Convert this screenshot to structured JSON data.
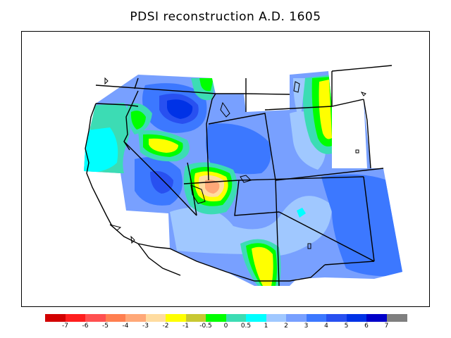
{
  "title": "PDSI reconstruction A.D. 1605",
  "colorbar": {
    "colors": [
      "#d20000",
      "#ff1e1e",
      "#ff5050",
      "#ff7f50",
      "#ffa878",
      "#ffdca0",
      "#ffff00",
      "#c8c832",
      "#00ff00",
      "#3cdcb4",
      "#00ffff",
      "#a0c8ff",
      "#78a0ff",
      "#3c78ff",
      "#2850f0",
      "#0032e6",
      "#0000c8",
      "#7f7f7f"
    ],
    "labels": [
      "-7",
      "-6",
      "-5",
      "-4",
      "-3",
      "-2",
      "-1",
      "-0.5",
      "0",
      "0.5",
      "1",
      "2",
      "3",
      "4",
      "5",
      "6",
      "7"
    ]
  },
  "map": {
    "region": "Western United States",
    "background_color": "#78a0ff",
    "border_color": "#000000"
  }
}
